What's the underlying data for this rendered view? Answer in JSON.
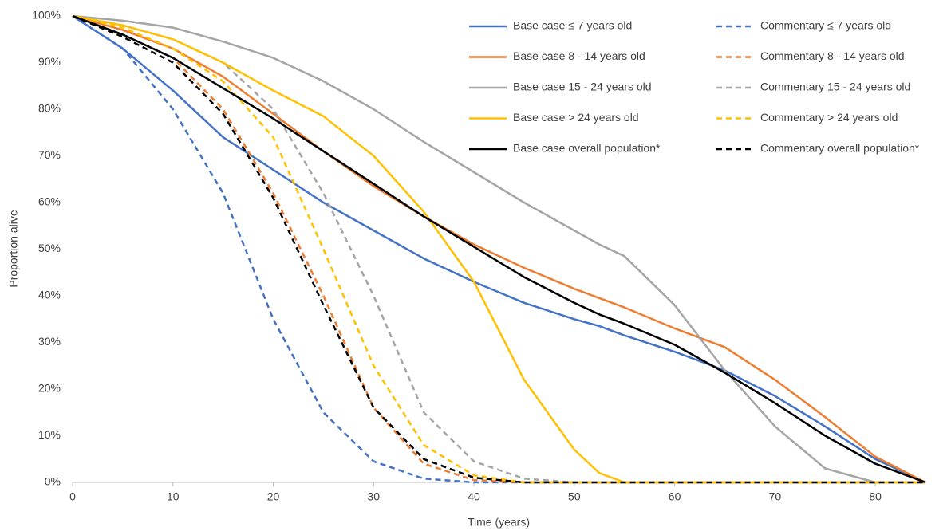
{
  "chart_data": {
    "type": "line",
    "x_label": "Time (years)",
    "y_label": "Proportion alive",
    "x": [
      0,
      5,
      10,
      15,
      20,
      25,
      30,
      35,
      40,
      45,
      50,
      52.5,
      55,
      60,
      65,
      70,
      75,
      80,
      85
    ],
    "xlim": [
      0,
      85
    ],
    "xticks": [
      0,
      10,
      20,
      30,
      40,
      50,
      60,
      70,
      80
    ],
    "ylim": [
      0,
      100
    ],
    "yticks": [
      {
        "value": 0,
        "label": "0%"
      },
      {
        "value": 10,
        "label": "10%"
      },
      {
        "value": 20,
        "label": "20%"
      },
      {
        "value": 30,
        "label": "30%"
      },
      {
        "value": 40,
        "label": "40%"
      },
      {
        "value": 50,
        "label": "50%"
      },
      {
        "value": 60,
        "label": "60%"
      },
      {
        "value": 70,
        "label": "70%"
      },
      {
        "value": 80,
        "label": "80%"
      },
      {
        "value": 90,
        "label": "90%"
      },
      {
        "value": 100,
        "label": "100%"
      }
    ],
    "grid": false,
    "legend": "top-right",
    "series": [
      {
        "name": "Base case ≤ 7 years old",
        "color": "#4472c4",
        "dashed": false,
        "values": [
          100,
          93,
          84,
          74,
          67,
          60,
          54,
          48,
          43,
          38.5,
          35,
          33.5,
          31.5,
          28,
          24,
          18.5,
          12,
          5,
          0
        ]
      },
      {
        "name": "Commentary ≤ 7 years old",
        "color": "#4472c4",
        "dashed": true,
        "values": [
          100,
          93,
          80,
          62,
          35,
          15,
          4.5,
          0.8,
          0,
          0,
          0,
          0,
          0,
          0,
          0,
          0,
          0,
          0,
          0
        ]
      },
      {
        "name": "Base case 8 - 14 years old",
        "color": "#ed7d31",
        "dashed": false,
        "values": [
          100,
          97,
          93,
          87,
          79,
          71,
          63.5,
          57,
          51,
          46,
          41.5,
          39.5,
          37.5,
          33,
          29,
          22,
          14,
          5.5,
          0
        ]
      },
      {
        "name": "Commentary 8 - 14 years old",
        "color": "#ed7d31",
        "dashed": true,
        "values": [
          100,
          96,
          91,
          80,
          62,
          40,
          16,
          4,
          0.5,
          0,
          0,
          0,
          0,
          0,
          0,
          0,
          0,
          0,
          0
        ]
      },
      {
        "name": "Base case 15 - 24 years old",
        "color": "#a5a5a5",
        "dashed": false,
        "values": [
          100,
          99,
          97.5,
          94.5,
          91,
          86,
          80,
          73,
          66.5,
          60,
          54,
          51,
          48.5,
          38,
          24,
          12,
          3,
          0,
          0
        ]
      },
      {
        "name": "Commentary 15 - 24 years old",
        "color": "#a5a5a5",
        "dashed": true,
        "values": [
          100,
          98,
          95,
          90,
          80,
          62,
          40,
          15,
          4.5,
          0.8,
          0,
          0,
          0,
          0,
          0,
          0,
          0,
          0,
          0
        ]
      },
      {
        "name": "Base case > 24 years old",
        "color": "#ffc000",
        "dashed": false,
        "values": [
          100,
          98,
          95,
          90,
          84,
          78.5,
          70,
          58,
          43,
          22,
          7,
          2,
          0,
          0,
          0,
          0,
          0,
          0,
          0
        ]
      },
      {
        "name": "Commentary > 24 years old",
        "color": "#ffc000",
        "dashed": true,
        "values": [
          100,
          97.5,
          93,
          86,
          74,
          50,
          25,
          8,
          1.5,
          0,
          0,
          0,
          0,
          0,
          0,
          0,
          0,
          0,
          0
        ]
      },
      {
        "name": "Base case overall population*",
        "color": "#000000",
        "dashed": false,
        "values": [
          100,
          96,
          91,
          84.5,
          78,
          71,
          64,
          57,
          50.5,
          44,
          38.5,
          36,
          34,
          29.5,
          23.5,
          17,
          10,
          4,
          0
        ]
      },
      {
        "name": "Commentary overall population*",
        "color": "#000000",
        "dashed": true,
        "values": [
          100,
          95.5,
          90,
          79,
          61,
          38,
          16,
          5,
          1,
          0,
          0,
          0,
          0,
          0,
          0,
          0,
          0,
          0,
          0
        ]
      }
    ]
  }
}
